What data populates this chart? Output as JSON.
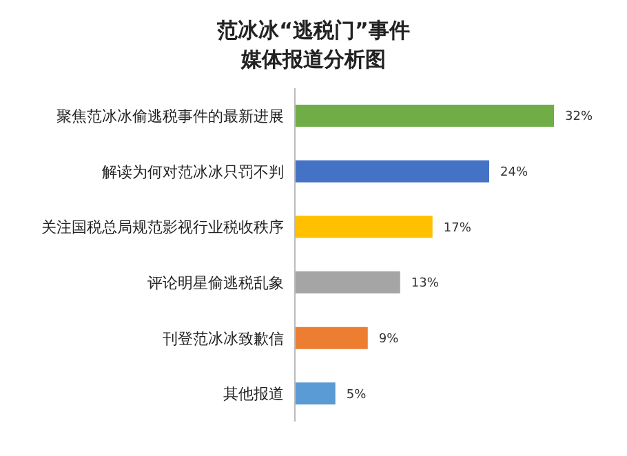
{
  "chart_data": {
    "type": "bar",
    "orientation": "horizontal",
    "title": "范冰冰“逃税门”事件媒体报道分析图",
    "categories": [
      "聚焦范冰冰偷逃税事件的最新进展",
      "解读为何对范冰冰只罚不判",
      "关注国税总局规范影视行业税收秩序",
      "评论明星偷逃税乱象",
      "刊登范冰冰致歉信",
      "其他报道"
    ],
    "values": [
      32,
      24,
      17,
      13,
      9,
      5
    ],
    "colors": [
      "#70ad47",
      "#4472c4",
      "#ffc000",
      "#a5a5a5",
      "#ed7d31",
      "#5b9bd5"
    ],
    "value_labels": [
      "32%",
      "24%",
      "17%",
      "13%",
      "9%",
      "5%"
    ]
  }
}
